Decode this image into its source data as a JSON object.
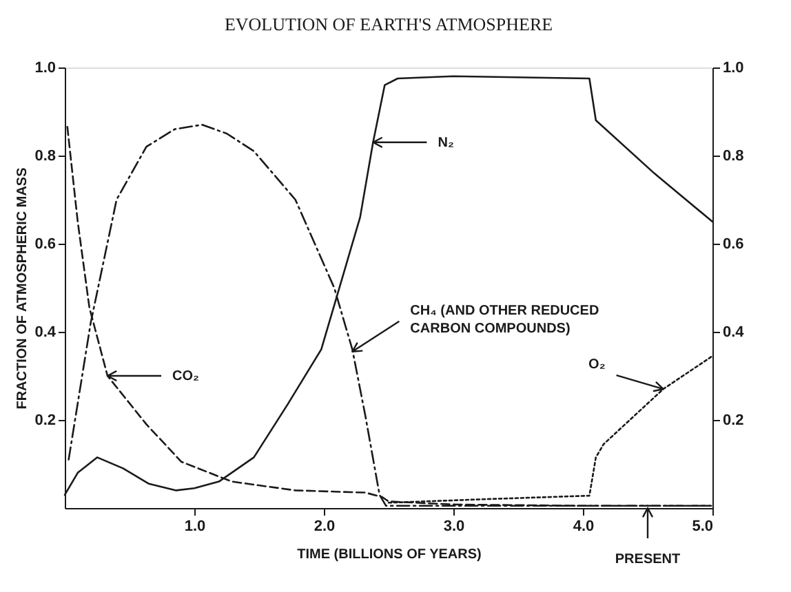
{
  "chart_data": {
    "type": "line",
    "title": "EVOLUTION OF EARTH'S ATMOSPHERE",
    "xlabel": "TIME (BILLIONS OF YEARS)",
    "ylabel": "FRACTION OF ATMOSPHERIC MASS",
    "xlim": [
      0,
      5
    ],
    "xticks": [
      {
        "value": 1,
        "label": "1.0"
      },
      {
        "value": 2,
        "label": "2.0"
      },
      {
        "value": 3,
        "label": "3.0"
      },
      {
        "value": 4,
        "label": "4.0"
      },
      {
        "value": 5,
        "label": "5.0"
      }
    ],
    "ylim": [
      0,
      1
    ],
    "yticks": [
      0.2,
      0.4,
      0.6,
      0.8,
      {
        "value": 1,
        "label": "1.0"
      }
    ],
    "y2lim": [
      0,
      1
    ],
    "y2ticks": [
      0.2,
      0.4,
      0.6,
      0.8,
      {
        "value": 1,
        "label": "1.0"
      }
    ],
    "grid": false,
    "marker": "none",
    "series": [
      {
        "color": "#1a1a1a",
        "line_style": "solid",
        "x": [
          0,
          0.1,
          0.25,
          0.45,
          0.65,
          0.86,
          1.0,
          1.19,
          1.46,
          1.72,
          1.98,
          2.1,
          2.28,
          2.38,
          2.47,
          2.57,
          3.0,
          4.05,
          4.1,
          4.55,
          5.0
        ],
        "values": [
          0.03,
          0.08,
          0.115,
          0.09,
          0.055,
          0.04,
          0.045,
          0.06,
          0.115,
          0.235,
          0.36,
          0.48,
          0.66,
          0.83,
          0.96,
          0.975,
          0.98,
          0.975,
          0.88,
          0.76,
          0.65
        ]
      },
      {
        "color": "#1a1a1a",
        "line_style": "dashed",
        "x": [
          0.02,
          0.1,
          0.19,
          0.33,
          0.63,
          0.9,
          1.29,
          1.78,
          2.32,
          2.45,
          2.5,
          3.0,
          4.0,
          5.0
        ],
        "values": [
          0.865,
          0.65,
          0.455,
          0.3,
          0.19,
          0.105,
          0.06,
          0.04,
          0.035,
          0.025,
          0.015,
          0.008,
          0.005,
          0.005
        ]
      },
      {
        "color": "#1a1a1a",
        "line_style": "dashdot",
        "x": [
          0.03,
          0.2,
          0.4,
          0.63,
          0.85,
          1.06,
          1.25,
          1.46,
          1.78,
          2.08,
          2.22,
          2.32,
          2.43,
          2.48,
          3.0,
          5.0
        ],
        "values": [
          0.11,
          0.42,
          0.7,
          0.82,
          0.86,
          0.87,
          0.85,
          0.81,
          0.7,
          0.5,
          0.36,
          0.21,
          0.03,
          0.005,
          0.005,
          0.005
        ]
      },
      {
        "color": "#1a1a1a",
        "line_style": "dotted",
        "x": [
          2.5,
          3.24,
          4.05,
          4.1,
          4.16,
          4.62,
          5.0
        ],
        "values": [
          0.012,
          0.02,
          0.028,
          0.115,
          0.145,
          0.27,
          0.345
        ]
      }
    ],
    "annotations": [
      {
        "text": "N₂",
        "x": 2.38,
        "y": 0.83
      },
      {
        "text": "CO₂",
        "x": 0.33,
        "y": 0.3
      },
      {
        "text": "CH₄ (AND OTHER REDUCED\nCARBON COMPOUNDS)",
        "x": 2.22,
        "y": 0.355
      },
      {
        "text": "O₂",
        "x": 4.62,
        "y": 0.27
      },
      {
        "text": "PRESENT",
        "x": 4.5,
        "y": 0
      }
    ]
  }
}
